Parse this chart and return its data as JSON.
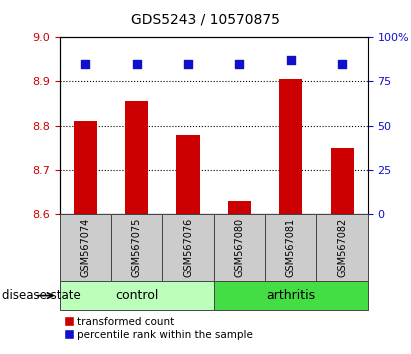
{
  "title": "GDS5243 / 10570875",
  "samples": [
    "GSM567074",
    "GSM567075",
    "GSM567076",
    "GSM567080",
    "GSM567081",
    "GSM567082"
  ],
  "bar_values": [
    8.81,
    8.855,
    8.778,
    8.63,
    8.905,
    8.75
  ],
  "percentile_values": [
    85,
    85,
    85,
    85,
    87,
    85
  ],
  "bar_color": "#cc0000",
  "dot_color": "#1010cc",
  "ylim_left": [
    8.6,
    9.0
  ],
  "ylim_right": [
    0,
    100
  ],
  "yticks_left": [
    8.6,
    8.7,
    8.8,
    8.9,
    9.0
  ],
  "yticks_right": [
    0,
    25,
    50,
    75,
    100
  ],
  "ytick_labels_right": [
    "0",
    "25",
    "50",
    "75",
    "100%"
  ],
  "baseline": 8.6,
  "groups": [
    {
      "label": "control",
      "indices": [
        0,
        1,
        2
      ],
      "color": "#bbffbb"
    },
    {
      "label": "arthritis",
      "indices": [
        3,
        4,
        5
      ],
      "color": "#44dd44"
    }
  ],
  "disease_label": "disease state",
  "legend_items": [
    {
      "label": "transformed count",
      "color": "#cc0000"
    },
    {
      "label": "percentile rank within the sample",
      "color": "#1010cc"
    }
  ],
  "label_box_color": "#cccccc",
  "background_color": "#ffffff",
  "bar_width": 0.45,
  "dot_size": 40,
  "grid_lines": [
    8.7,
    8.8,
    8.9
  ],
  "title_fontsize": 10,
  "tick_fontsize": 8,
  "sample_fontsize": 7,
  "group_fontsize": 9
}
